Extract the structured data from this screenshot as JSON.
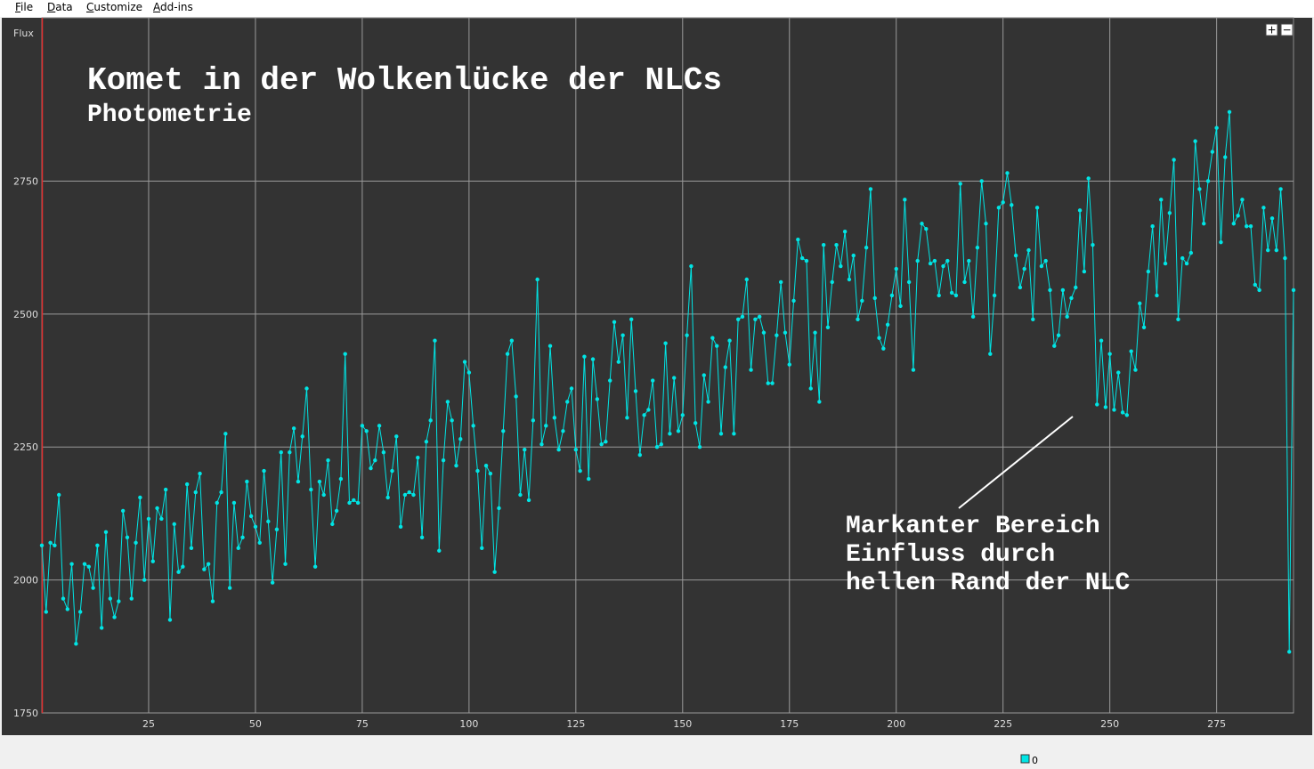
{
  "menu": [
    "File",
    "Data",
    "Customize",
    "Add-ins"
  ],
  "chart_data": {
    "type": "line",
    "title": "Komet in der Wolkenlücke der NLCs",
    "subtitle": "Photometrie",
    "ylabel": "Flux",
    "annotations": [
      "Markanter Bereich",
      "Einfluss durch",
      "hellen Rand der NLC"
    ],
    "xlim": [
      0,
      293
    ],
    "xticks": [
      25,
      50,
      75,
      100,
      125,
      150,
      175,
      200,
      225,
      250,
      275
    ],
    "ylim": [
      1750,
      3057
    ],
    "yticks": [
      1750,
      2000,
      2250,
      2500,
      2750
    ],
    "grid": true,
    "x": [
      0,
      1,
      2,
      3,
      4,
      5,
      6,
      7,
      8,
      9,
      10,
      11,
      12,
      13,
      14,
      15,
      16,
      17,
      18,
      19,
      20,
      21,
      22,
      23,
      24,
      25,
      26,
      27,
      28,
      29,
      30,
      31,
      32,
      33,
      34,
      35,
      36,
      37,
      38,
      39,
      40,
      41,
      42,
      43,
      44,
      45,
      46,
      47,
      48,
      49,
      50,
      51,
      52,
      53,
      54,
      55,
      56,
      57,
      58,
      59,
      60,
      61,
      62,
      63,
      64,
      65,
      66,
      67,
      68,
      69,
      70,
      71,
      72,
      73,
      74,
      75,
      76,
      77,
      78,
      79,
      80,
      81,
      82,
      83,
      84,
      85,
      86,
      87,
      88,
      89,
      90,
      91,
      92,
      93,
      94,
      95,
      96,
      97,
      98,
      99,
      100,
      101,
      102,
      103,
      104,
      105,
      106,
      107,
      108,
      109,
      110,
      111,
      112,
      113,
      114,
      115,
      116,
      117,
      118,
      119,
      120,
      121,
      122,
      123,
      124,
      125,
      126,
      127,
      128,
      129,
      130,
      131,
      132,
      133,
      134,
      135,
      136,
      137,
      138,
      139,
      140,
      141,
      142,
      143,
      144,
      145,
      146,
      147,
      148,
      149,
      150,
      151,
      152,
      153,
      154,
      155,
      156,
      157,
      158,
      159,
      160,
      161,
      162,
      163,
      164,
      165,
      166,
      167,
      168,
      169,
      170,
      171,
      172,
      173,
      174,
      175,
      176,
      177,
      178,
      179,
      180,
      181,
      182,
      183,
      184,
      185,
      186,
      187,
      188,
      189,
      190,
      191,
      192,
      193,
      194,
      195,
      196,
      197,
      198,
      199,
      200,
      201,
      202,
      203,
      204,
      205,
      206,
      207,
      208,
      209,
      210,
      211,
      212,
      213,
      214,
      215,
      216,
      217,
      218,
      219,
      220,
      221,
      222,
      223,
      224,
      225,
      226,
      227,
      228,
      229,
      230,
      231,
      232,
      233,
      234,
      235,
      236,
      237,
      238,
      239,
      240,
      241,
      242,
      243,
      244,
      245,
      246,
      247,
      248,
      249,
      250,
      251,
      252,
      253,
      254,
      255,
      256,
      257,
      258,
      259,
      260,
      261,
      262,
      263,
      264,
      265,
      266,
      267,
      268,
      269,
      270,
      271,
      272,
      273,
      274,
      275,
      276,
      277,
      278,
      279,
      280,
      281,
      282,
      283,
      284,
      285,
      286,
      287,
      288,
      289,
      290,
      291,
      292,
      293
    ],
    "series": [
      {
        "name": "0",
        "color": "#00e5e5",
        "values": [
          2065,
          1940,
          2070,
          2065,
          2160,
          1965,
          1945,
          2030,
          1880,
          1940,
          2030,
          2025,
          1985,
          2065,
          1910,
          2090,
          1965,
          1930,
          1960,
          2130,
          2080,
          1965,
          2070,
          2155,
          2000,
          2115,
          2035,
          2135,
          2115,
          2170,
          1925,
          2105,
          2015,
          2025,
          2180,
          2060,
          2165,
          2200,
          2020,
          2030,
          1960,
          2145,
          2165,
          2275,
          1985,
          2145,
          2060,
          2080,
          2185,
          2120,
          2100,
          2070,
          2205,
          2110,
          1995,
          2095,
          2240,
          2030,
          2240,
          2285,
          2185,
          2270,
          2360,
          2170,
          2025,
          2185,
          2160,
          2225,
          2105,
          2130,
          2190,
          2425,
          2145,
          2150,
          2145,
          2290,
          2280,
          2210,
          2225,
          2290,
          2240,
          2155,
          2205,
          2270,
          2100,
          2160,
          2165,
          2160,
          2230,
          2080,
          2260,
          2300,
          2450,
          2055,
          2225,
          2335,
          2300,
          2215,
          2265,
          2410,
          2390,
          2290,
          2205,
          2060,
          2215,
          2200,
          2015,
          2135,
          2280,
          2425,
          2450,
          2345,
          2160,
          2245,
          2150,
          2300,
          2565,
          2255,
          2290,
          2440,
          2305,
          2245,
          2280,
          2335,
          2360,
          2245,
          2205,
          2420,
          2190,
          2415,
          2340,
          2255,
          2260,
          2375,
          2485,
          2410,
          2460,
          2305,
          2490,
          2355,
          2235,
          2310,
          2320,
          2375,
          2250,
          2255,
          2445,
          2275,
          2380,
          2280,
          2310,
          2460,
          2590,
          2295,
          2250,
          2385,
          2335,
          2455,
          2440,
          2275,
          2400,
          2450,
          2275,
          2490,
          2495,
          2565,
          2395,
          2490,
          2495,
          2465,
          2370,
          2370,
          2460,
          2560,
          2465,
          2405,
          2525,
          2640,
          2605,
          2600,
          2360,
          2465,
          2335,
          2630,
          2475,
          2560,
          2630,
          2590,
          2655,
          2565,
          2610,
          2490,
          2525,
          2625,
          2735,
          2530,
          2455,
          2435,
          2480,
          2535,
          2585,
          2515,
          2715,
          2560,
          2395,
          2600,
          2670,
          2660,
          2595,
          2600,
          2535,
          2590,
          2600,
          2540,
          2535,
          2745,
          2560,
          2600,
          2495,
          2625,
          2750,
          2670,
          2425,
          2535,
          2700,
          2710,
          2765,
          2705,
          2610,
          2550,
          2585,
          2620,
          2490,
          2700,
          2590,
          2600,
          2545,
          2440,
          2460,
          2545,
          2495,
          2530,
          2550,
          2695,
          2580,
          2755,
          2630,
          2330,
          2450,
          2325,
          2425,
          2320,
          2390,
          2315,
          2310,
          2430,
          2395,
          2520,
          2475,
          2580,
          2665,
          2535,
          2715,
          2595,
          2690,
          2790,
          2490,
          2605,
          2595,
          2615,
          2825,
          2735,
          2670,
          2750,
          2805,
          2850,
          2635,
          2795,
          2880,
          2670,
          2685,
          2715,
          2665,
          2665,
          2555,
          2545,
          2700,
          2620,
          2680,
          2620,
          2735,
          2605,
          1865,
          2545
        ]
      }
    ]
  }
}
